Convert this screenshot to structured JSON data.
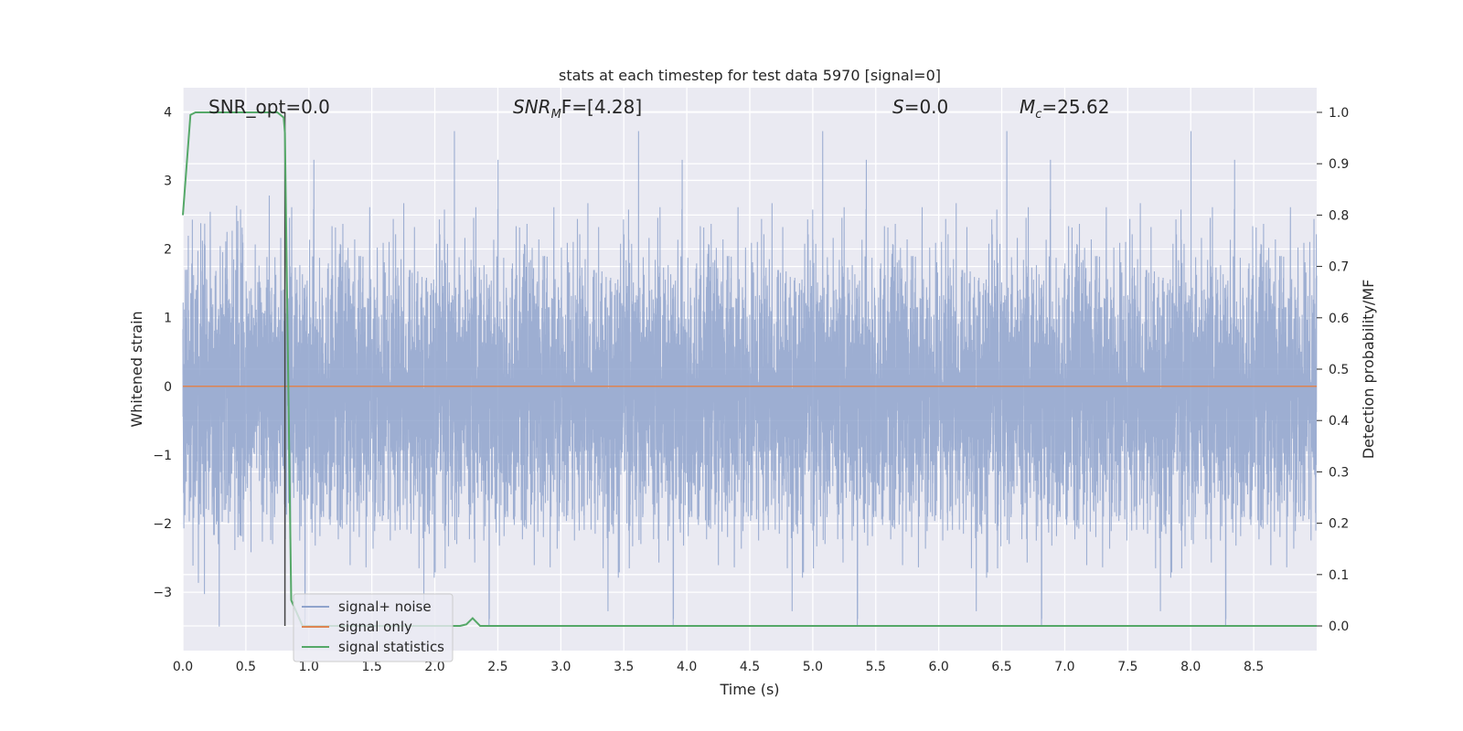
{
  "chart_data": {
    "type": "line",
    "title": "stats at each timestep for test data 5970 [signal=0]",
    "xlabel": "Time (s)",
    "ylabel": "Whitened strain",
    "ylabel_right": "Detection probability/MF",
    "xlim": [
      0.0,
      9.0
    ],
    "ylim": [
      -3.85,
      4.35
    ],
    "ylim_right": [
      -0.048,
      1.048
    ],
    "x_ticks": [
      "0.0",
      "0.5",
      "1.0",
      "1.5",
      "2.0",
      "2.5",
      "3.0",
      "3.5",
      "4.0",
      "4.5",
      "5.0",
      "5.5",
      "6.0",
      "6.5",
      "7.0",
      "7.5",
      "8.0",
      "8.5"
    ],
    "y_ticks": [
      "4",
      "3",
      "2",
      "1",
      "0",
      "−1",
      "−2",
      "−3"
    ],
    "y_ticks_right": [
      "1.0",
      "0.9",
      "0.8",
      "0.7",
      "0.6",
      "0.5",
      "0.4",
      "0.3",
      "0.2",
      "0.1",
      "0.0"
    ],
    "grid": true,
    "legend_position": "lower-left",
    "annotations": {
      "snr_opt": "SNR_opt=0.0",
      "snr_mf_base": "SNR",
      "snr_mf_sub": "M",
      "snr_mf_rest": "F=[4.28]",
      "s_base": "S",
      "s_rest": "=0.0",
      "mc_base": "M",
      "mc_sub": "c",
      "mc_rest": "=25.62"
    },
    "series": [
      {
        "name": "signal+ noise",
        "color": "#8fa3cc",
        "description": "noise strain, roughly Gaussian between about -3.5 and 4.0",
        "y_range": [
          -3.5,
          4.0
        ]
      },
      {
        "name": "signal only",
        "color": "#dd8452",
        "x": [
          0.0,
          9.0
        ],
        "y": [
          0.0,
          0.0
        ]
      },
      {
        "name": "signal statistics",
        "color": "#55a868",
        "axis": "right",
        "x": [
          0.0,
          0.06,
          0.1,
          0.5,
          0.75,
          0.8,
          0.81,
          0.86,
          0.95,
          1.2,
          1.5,
          2.0,
          2.2,
          2.25,
          2.3,
          2.36,
          2.4,
          9.0
        ],
        "y": [
          0.8,
          0.995,
          1.0,
          1.0,
          1.0,
          0.99,
          0.96,
          0.05,
          0.0,
          0.0,
          0.0,
          0.0,
          0.0,
          0.003,
          0.015,
          0.0,
          0.0,
          0.0
        ]
      }
    ],
    "vline_x": 0.81
  },
  "colors": {
    "axes_bg": "#eaeaf2",
    "grid": "#ffffff",
    "noise": "#8fa3cc",
    "signal": "#dd8452",
    "stats": "#55a868",
    "vline": "#444444"
  }
}
